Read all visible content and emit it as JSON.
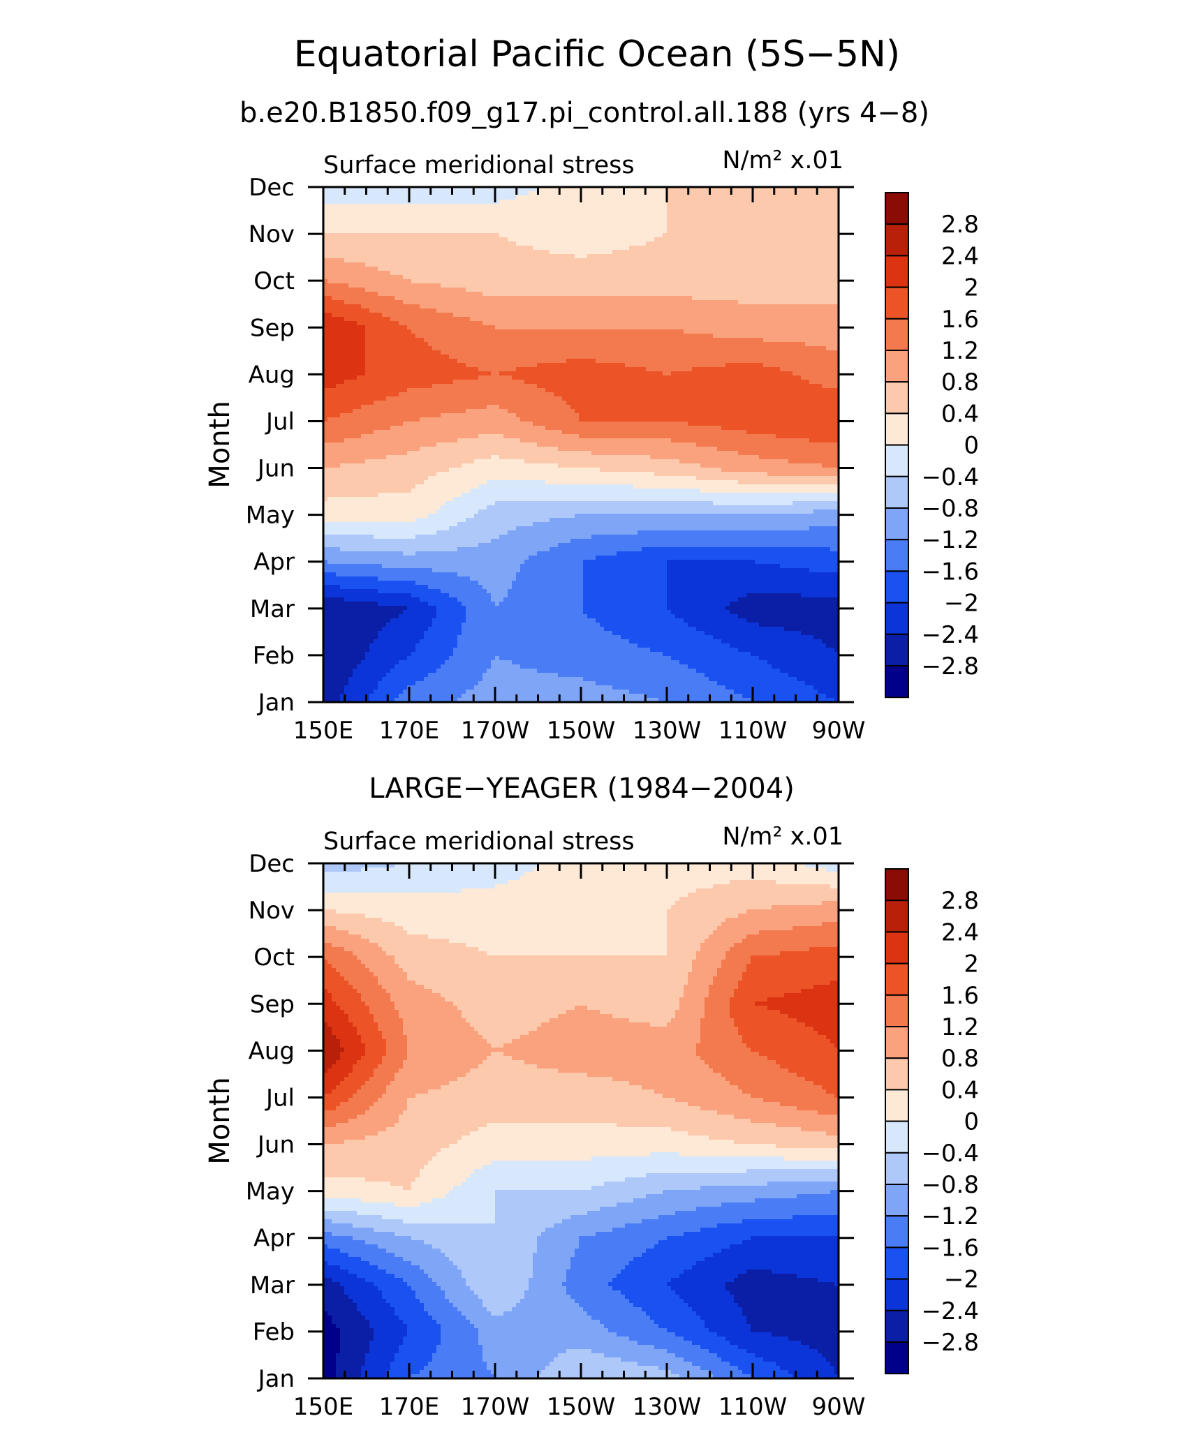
{
  "title": "Equatorial Pacific Ocean (5S−5N)",
  "chart_data": [
    {
      "type": "heatmap",
      "title": "b.e20.B1850.f09_g17.pi_control.all.188 (yrs 4−8)",
      "subtitle": "Surface meridional stress",
      "units": "N/m² x.01",
      "ylabel": "Month",
      "x": [
        "150E",
        "170E",
        "170W",
        "150W",
        "130W",
        "110W",
        "90W"
      ],
      "y": [
        "Jan",
        "Feb",
        "Mar",
        "Apr",
        "May",
        "Jun",
        "Jul",
        "Aug",
        "Sep",
        "Oct",
        "Nov",
        "Dec"
      ],
      "z": [
        [
          -2.6,
          -1.4,
          -1.0,
          -1.0,
          -1.2,
          -1.6,
          -2.0
        ],
        [
          -2.8,
          -2.0,
          -1.2,
          -1.4,
          -1.6,
          -2.0,
          -2.4
        ],
        [
          -2.8,
          -2.4,
          -1.2,
          -1.6,
          -2.0,
          -2.6,
          -2.6
        ],
        [
          -1.2,
          -1.0,
          -1.0,
          -1.6,
          -2.0,
          -2.0,
          -1.8
        ],
        [
          0.2,
          0.2,
          -0.6,
          -0.8,
          -0.8,
          -0.8,
          -1.0
        ],
        [
          0.8,
          0.6,
          0.2,
          0.4,
          0.6,
          1.0,
          1.2
        ],
        [
          1.6,
          1.2,
          1.0,
          1.6,
          1.6,
          1.8,
          2.0
        ],
        [
          2.2,
          1.8,
          1.6,
          1.8,
          1.6,
          1.8,
          1.4
        ],
        [
          2.4,
          1.6,
          1.2,
          1.2,
          1.2,
          1.0,
          1.0
        ],
        [
          1.2,
          0.8,
          0.6,
          0.6,
          0.6,
          0.6,
          0.6
        ],
        [
          0.4,
          0.4,
          0.4,
          0.2,
          0.4,
          0.4,
          0.4
        ],
        [
          -0.2,
          -0.2,
          -0.2,
          0.2,
          0.4,
          0.4,
          0.4
        ]
      ]
    },
    {
      "type": "heatmap",
      "title": "LARGE−YEAGER (1984−2004)",
      "subtitle": "Surface meridional stress",
      "units": "N/m² x.01",
      "ylabel": "Month",
      "x": [
        "150E",
        "170E",
        "170W",
        "150W",
        "130W",
        "110W",
        "90W"
      ],
      "y": [
        "Jan",
        "Feb",
        "Mar",
        "Apr",
        "May",
        "Jun",
        "Jul",
        "Aug",
        "Sep",
        "Oct",
        "Nov",
        "Dec"
      ],
      "z": [
        [
          -3.0,
          -1.6,
          -1.2,
          -0.4,
          -0.6,
          -1.6,
          -2.4
        ],
        [
          -3.0,
          -2.0,
          -1.0,
          -1.0,
          -1.6,
          -2.4,
          -2.6
        ],
        [
          -2.6,
          -1.6,
          -0.4,
          -1.4,
          -2.0,
          -2.6,
          -2.4
        ],
        [
          -1.4,
          -0.8,
          -0.4,
          -1.2,
          -1.6,
          -2.0,
          -2.0
        ],
        [
          0.2,
          0.4,
          -0.4,
          -0.4,
          -0.8,
          -1.0,
          -1.2
        ],
        [
          0.8,
          0.6,
          0.2,
          0.2,
          0.2,
          0.4,
          0.6
        ],
        [
          2.0,
          0.8,
          0.6,
          0.6,
          0.8,
          1.2,
          1.6
        ],
        [
          2.8,
          1.2,
          0.8,
          1.0,
          1.0,
          1.6,
          2.0
        ],
        [
          2.2,
          1.0,
          0.6,
          0.8,
          0.6,
          2.0,
          2.2
        ],
        [
          1.6,
          0.6,
          0.4,
          0.4,
          0.4,
          1.6,
          1.8
        ],
        [
          0.4,
          0.2,
          0.2,
          0.2,
          0.4,
          0.8,
          1.0
        ],
        [
          -0.6,
          -0.4,
          -0.2,
          0.2,
          0.2,
          0.2,
          -0.2
        ]
      ]
    }
  ],
  "colorbar": {
    "levels": [
      -2.8,
      -2.4,
      -2.0,
      -1.6,
      -1.2,
      -0.8,
      -0.4,
      0,
      0.4,
      0.8,
      1.2,
      1.6,
      2.0,
      2.4,
      2.8
    ],
    "labels": [
      "2.8",
      "2.4",
      "2",
      "1.6",
      "1.2",
      "0.8",
      "0.4",
      "0",
      "−0.4",
      "−0.8",
      "−1.2",
      "−1.6",
      "−2",
      "−2.4",
      "−2.8"
    ],
    "colors": [
      "#00008b",
      "#0a1fa6",
      "#0c35d9",
      "#1a52f2",
      "#4a7df5",
      "#7fa5f7",
      "#aec8fa",
      "#d7e8fc",
      "#fde9d6",
      "#fcc9ad",
      "#f9a27d",
      "#f37a4e",
      "#ec5428",
      "#dc3412",
      "#b8200a",
      "#8a0c05"
    ]
  }
}
